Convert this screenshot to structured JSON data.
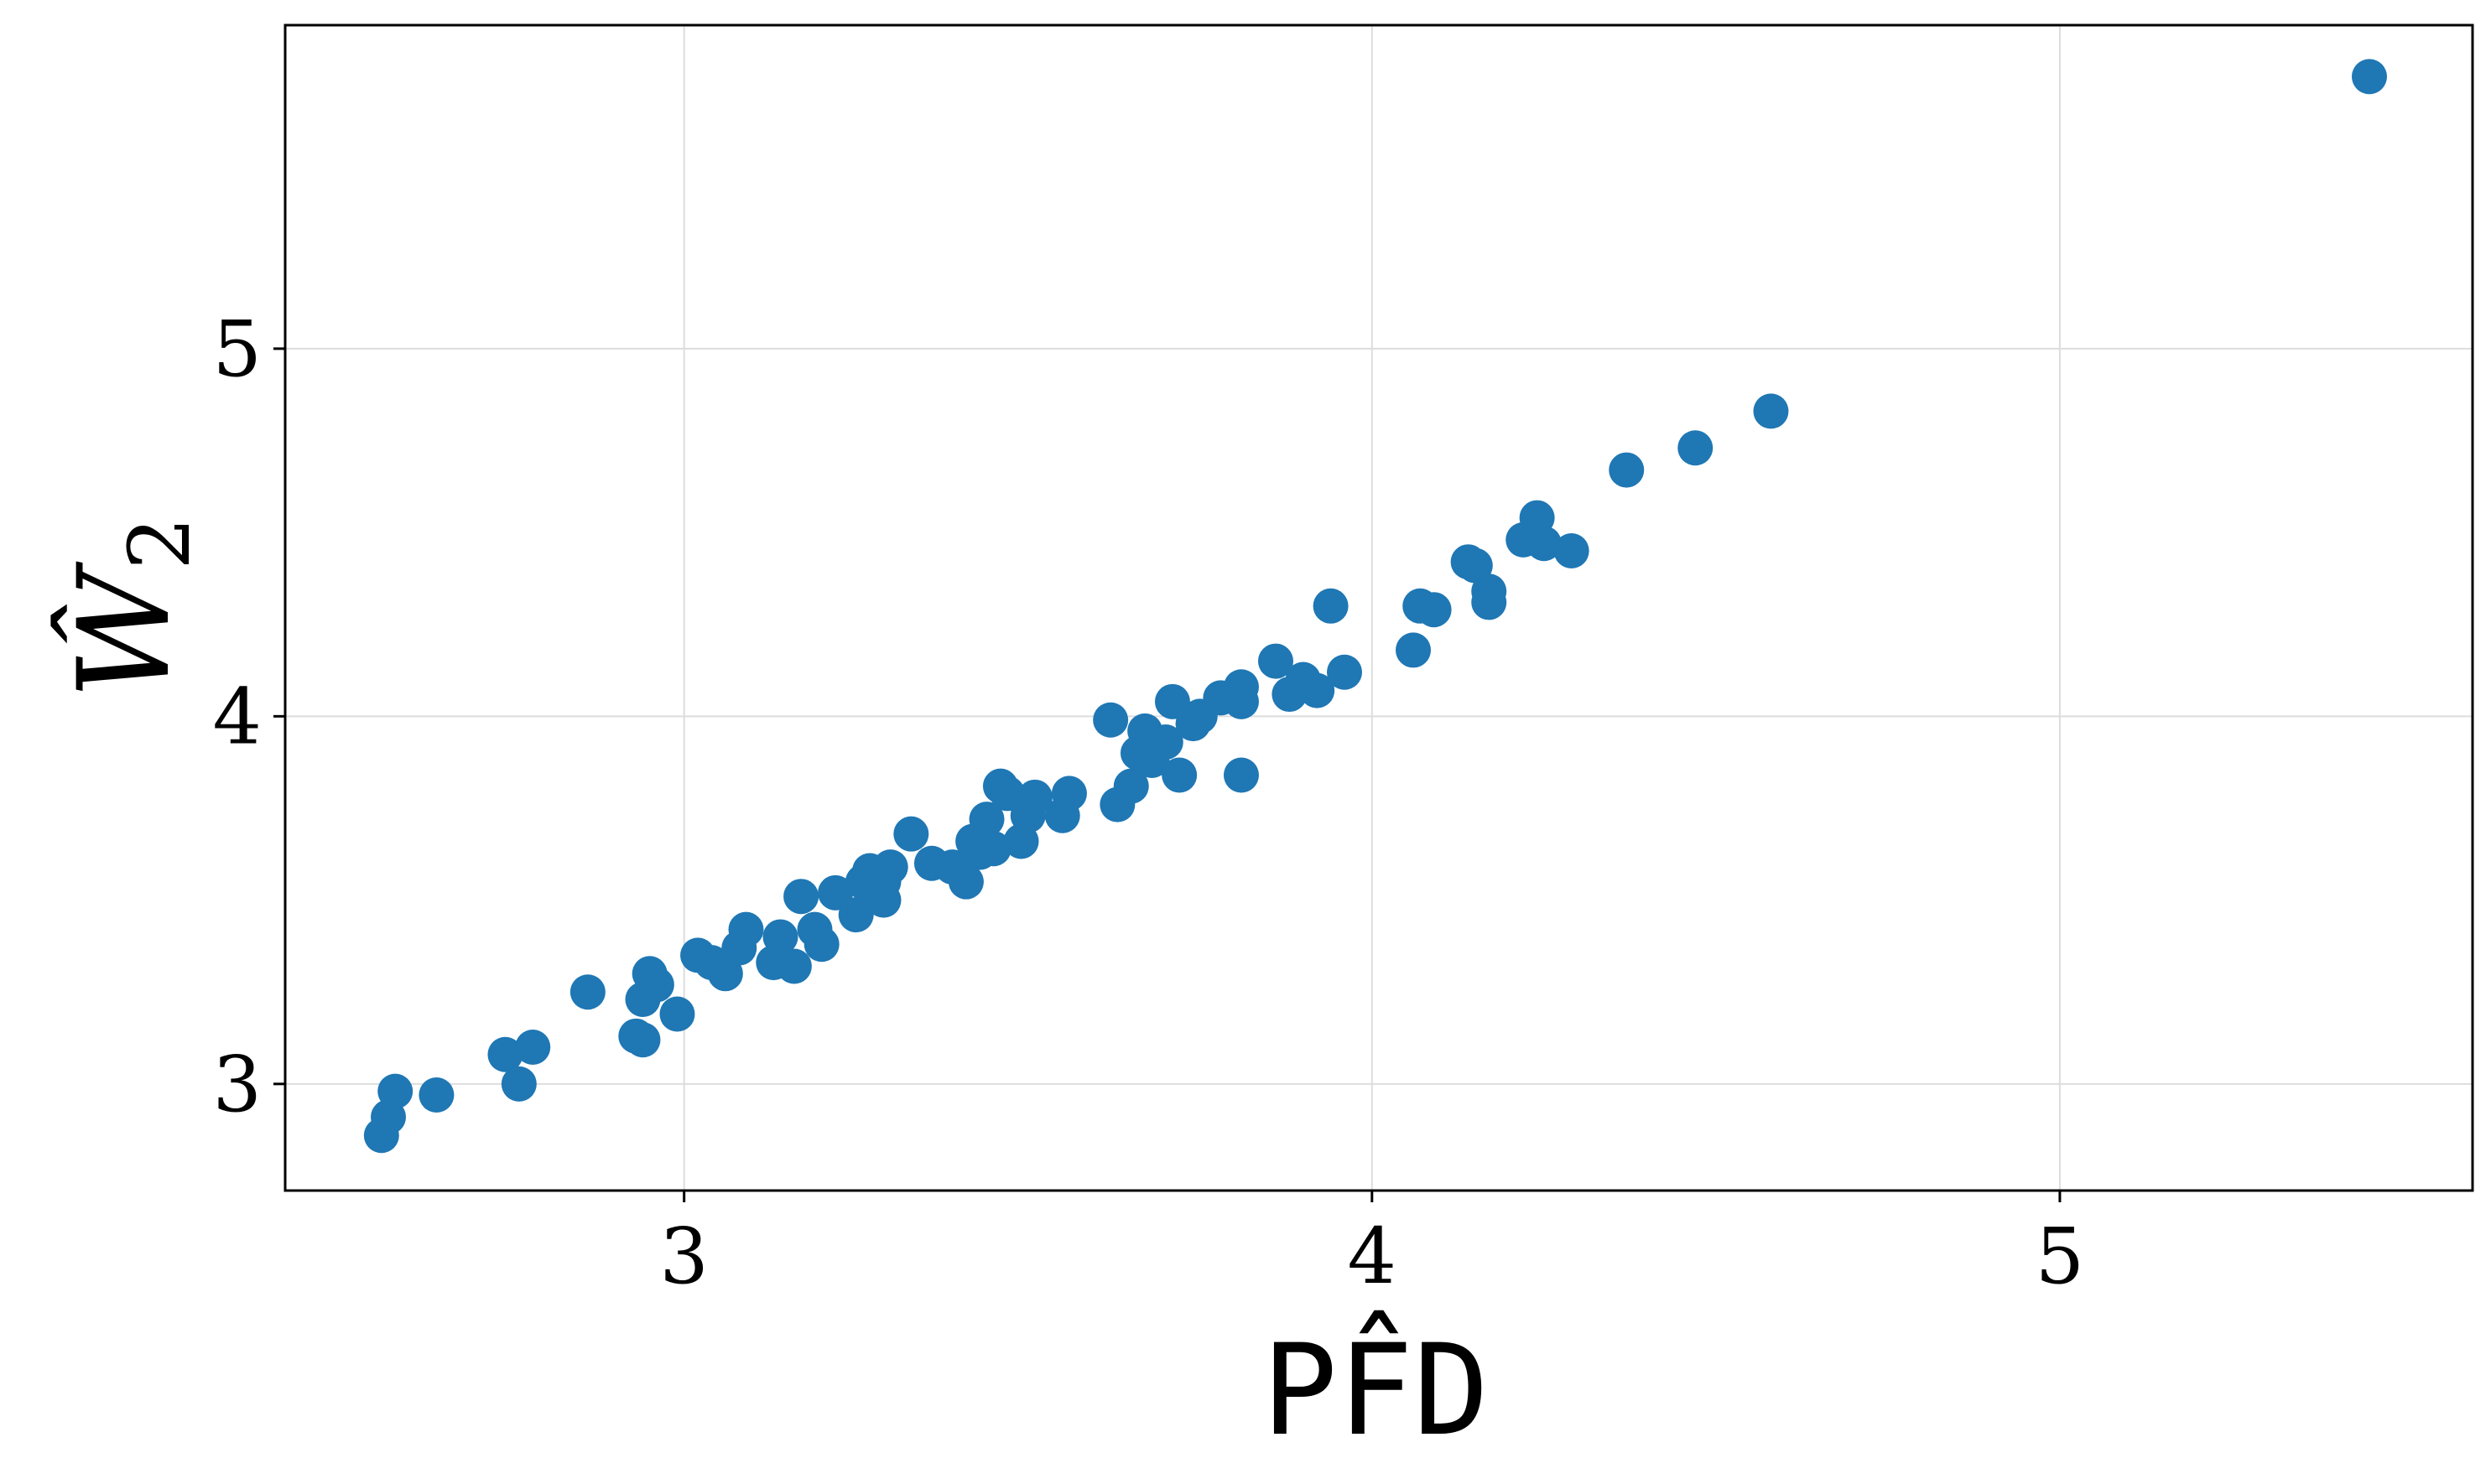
{
  "chart_data": {
    "type": "scatter",
    "title": "",
    "xlabel": "PF̂D",
    "ylabel": "Ŵ",
    "ylabel_subscript": "2",
    "xlim": [
      2.42,
      5.6
    ],
    "ylim": [
      2.71,
      5.88
    ],
    "xticks": [
      3,
      4,
      5
    ],
    "yticks": [
      3,
      4,
      5
    ],
    "xtick_labels": [
      "3",
      "4",
      "5"
    ],
    "ytick_labels": [
      "3",
      "4",
      "5"
    ],
    "grid": true,
    "legend": "none",
    "color": "#1f77b4",
    "x": [
      2.56,
      2.57,
      2.58,
      2.64,
      2.74,
      2.76,
      2.78,
      2.86,
      2.93,
      2.94,
      2.94,
      2.95,
      2.96,
      2.99,
      3.02,
      3.04,
      3.06,
      3.08,
      3.09,
      3.13,
      3.14,
      3.16,
      3.17,
      3.19,
      3.2,
      3.22,
      3.25,
      3.26,
      3.27,
      3.28,
      3.29,
      3.29,
      3.3,
      3.33,
      3.36,
      3.39,
      3.41,
      3.42,
      3.43,
      3.44,
      3.45,
      3.46,
      3.47,
      3.49,
      3.5,
      3.51,
      3.55,
      3.56,
      3.62,
      3.63,
      3.65,
      3.66,
      3.67,
      3.68,
      3.7,
      3.71,
      3.72,
      3.74,
      3.75,
      3.78,
      3.81,
      3.81,
      3.81,
      3.86,
      3.88,
      3.9,
      3.92,
      3.94,
      3.96,
      4.06,
      4.07,
      4.09,
      4.14,
      4.15,
      4.17,
      4.17,
      4.22,
      4.24,
      4.25,
      4.29,
      4.37,
      4.47,
      4.58,
      5.45
    ],
    "y": [
      2.86,
      2.91,
      2.98,
      2.97,
      3.08,
      3.0,
      3.1,
      3.25,
      3.13,
      3.23,
      3.12,
      3.3,
      3.27,
      3.19,
      3.35,
      3.33,
      3.3,
      3.37,
      3.42,
      3.33,
      3.4,
      3.32,
      3.51,
      3.42,
      3.38,
      3.52,
      3.46,
      3.55,
      3.58,
      3.53,
      3.5,
      3.55,
      3.59,
      3.68,
      3.6,
      3.59,
      3.55,
      3.66,
      3.63,
      3.72,
      3.64,
      3.81,
      3.79,
      3.66,
      3.73,
      3.78,
      3.73,
      3.79,
      3.99,
      3.76,
      3.81,
      3.9,
      3.96,
      3.88,
      3.93,
      4.04,
      3.84,
      3.98,
      4.0,
      4.05,
      4.08,
      4.04,
      3.84,
      4.15,
      4.06,
      4.1,
      4.07,
      4.3,
      4.12,
      4.18,
      4.3,
      4.29,
      4.42,
      4.41,
      4.34,
      4.31,
      4.48,
      4.54,
      4.47,
      4.45,
      4.67,
      4.73,
      4.83,
      5.74
    ]
  }
}
